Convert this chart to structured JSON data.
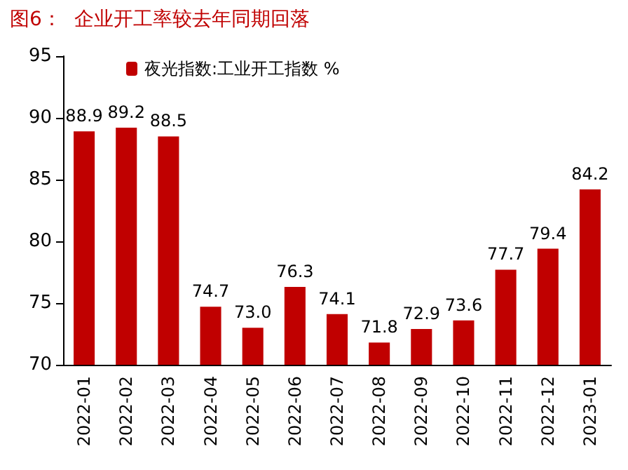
{
  "chart_data": {
    "type": "bar",
    "title": "图6：  企业开工率较去年同期回落",
    "categories": [
      "2022-01",
      "2022-02",
      "2022-03",
      "2022-04",
      "2022-05",
      "2022-06",
      "2022-07",
      "2022-08",
      "2022-09",
      "2022-10",
      "2022-11",
      "2022-12",
      "2023-01"
    ],
    "series": [
      {
        "name": "夜光指数:工业开工指数 %",
        "color": "#c00000",
        "values": [
          88.9,
          89.2,
          88.5,
          74.7,
          73.0,
          76.3,
          74.1,
          71.8,
          72.9,
          73.6,
          77.7,
          79.4,
          84.2
        ],
        "value_labels": [
          "88.9",
          "89.2",
          "88.5",
          "74.7",
          "73.0",
          "76.3",
          "74.1",
          "71.8",
          "72.9",
          "73.6",
          "77.7",
          "79.4",
          "84.2"
        ]
      }
    ],
    "ylim": [
      70,
      95
    ],
    "yticks": [
      70,
      75,
      80,
      85,
      90,
      95
    ],
    "grid": false,
    "legend": "top"
  }
}
